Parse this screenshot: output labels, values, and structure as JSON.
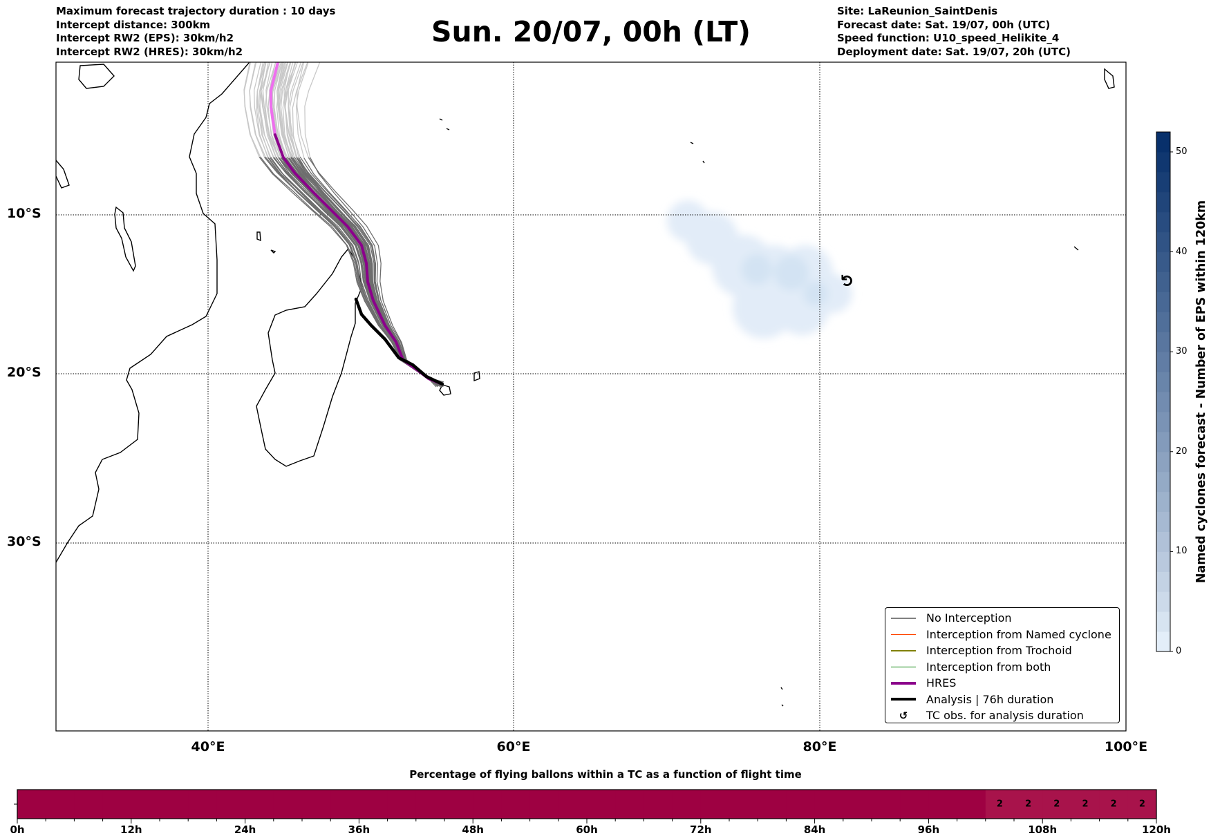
{
  "header": {
    "left": [
      "Maximum forecast trajectory duration : 10 days",
      "Intercept distance: 300km",
      "Intercept RW2 (EPS):  30km/h2",
      "Intercept RW2 (HRES): 30km/h2"
    ],
    "right": [
      "Site: LaReunion_SaintDenis",
      "Forecast date: Sat. 19/07, 00h (UTC)",
      "Speed function: U10_speed_Helikite_4",
      "Deployment date: Sat. 19/07, 20h (UTC)"
    ],
    "title": "Sun. 20/07, 00h (LT)"
  },
  "map": {
    "lat_labels": [
      "10°S",
      "20°S",
      "30°S"
    ],
    "lon_labels": [
      "40°E",
      "60°E",
      "80°E",
      "100°E"
    ],
    "colors": {
      "ensemble": "#6e6e6e",
      "ensemble_future": "#c8c8c8",
      "hres": "#8b008b",
      "hres_future": "#ee6fee",
      "analysis": "#000000"
    },
    "tc_symbol": "↺"
  },
  "legend": [
    {
      "label": "No Interception",
      "color": "#808080",
      "style": "thin"
    },
    {
      "label": "Interception from Named cyclone",
      "color": "#ff4500",
      "style": "thin"
    },
    {
      "label": "Interception from Trochoid",
      "color": "#808000",
      "style": "thin"
    },
    {
      "label": "Interception from both",
      "color": "#008000",
      "style": "thin"
    },
    {
      "label": "HRES",
      "color": "#8b008b",
      "style": "thick"
    },
    {
      "label": "Analysis | 76h duration",
      "color": "#000000",
      "style": "thick"
    },
    {
      "label": "TC obs. for analysis duration",
      "color": "#000000",
      "style": "symbol",
      "symbol": "↺"
    }
  ],
  "colorbar": {
    "label": "Named cyclones forecast - Number of EPS within 120km",
    "min": 0,
    "max": 52,
    "ticks": [
      "0",
      "10",
      "20",
      "30",
      "40",
      "50"
    ],
    "color_low": "#e3eef9",
    "color_high": "#08306b"
  },
  "chart_data": {
    "type": "heatmap",
    "title": "Percentage of flying ballons within a TC as a function of flight time",
    "xlabel": "",
    "ylabel": "",
    "x_ticks": [
      "0h",
      "12h",
      "24h",
      "36h",
      "48h",
      "60h",
      "72h",
      "84h",
      "96h",
      "108h",
      "120h"
    ],
    "xlim": [
      0,
      120
    ],
    "bin_hours": 3,
    "values": [
      0,
      0,
      0,
      0,
      0,
      0,
      0,
      0,
      0,
      0,
      0,
      0,
      0,
      0,
      0,
      0,
      0,
      0,
      0,
      0,
      0,
      0,
      0,
      0,
      0,
      0,
      0,
      0,
      0,
      0,
      0,
      0,
      0,
      0,
      2,
      2,
      2,
      2,
      2,
      2
    ],
    "colors": {
      "zero": "#9e0142",
      "low": "#a8134b"
    }
  }
}
